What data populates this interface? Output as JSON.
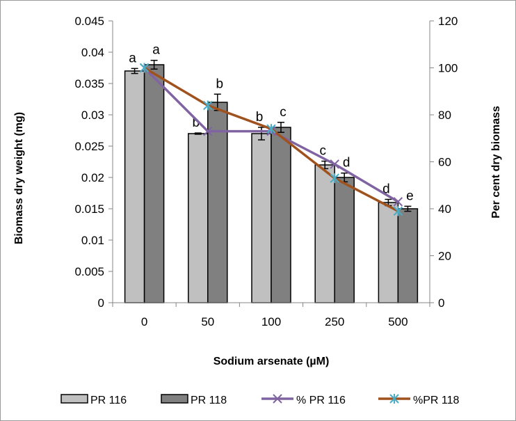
{
  "chart_data": {
    "type": "bar",
    "categories": [
      "0",
      "50",
      "100",
      "250",
      "500"
    ],
    "xlabel": "Sodium arsenate (µM)",
    "ylabel": "Biomass dry weight (mg)",
    "y2label": "Per cent dry biomass",
    "ylim": [
      0,
      0.045
    ],
    "y2lim": [
      0,
      120
    ],
    "yticks": [
      "0",
      "0.005",
      "0.01",
      "0.015",
      "0.02",
      "0.025",
      "0.03",
      "0.035",
      "0.04",
      "0.045"
    ],
    "y2ticks": [
      "0",
      "20",
      "40",
      "60",
      "80",
      "100",
      "120"
    ],
    "grid": false,
    "legend_position": "bottom",
    "series": [
      {
        "name": "PR 116",
        "kind": "bar",
        "axis": "left",
        "color": "#c0c0c0",
        "values": [
          0.037,
          0.027,
          0.027,
          0.022,
          0.016
        ],
        "errors": [
          0.0004,
          0.0001,
          0.001,
          0.0006,
          0.0005
        ],
        "letters": [
          "a",
          "b",
          "b",
          "c",
          "d"
        ]
      },
      {
        "name": "PR 118",
        "kind": "bar",
        "axis": "left",
        "color": "#808080",
        "values": [
          0.038,
          0.032,
          0.028,
          0.02,
          0.015
        ],
        "errors": [
          0.0007,
          0.0013,
          0.0008,
          0.0007,
          0.0004
        ],
        "letters": [
          "a",
          "b",
          "c",
          "d",
          "e"
        ]
      },
      {
        "name": "% PR 116",
        "kind": "line",
        "axis": "right",
        "color": "#8064a2",
        "marker": "x",
        "values": [
          100,
          73,
          73,
          59,
          43
        ]
      },
      {
        "name": "%PR 118",
        "kind": "line",
        "axis": "right",
        "color": "#a0521e",
        "marker": "asterisk",
        "marker_color": "#4bacc6",
        "values": [
          100,
          84,
          74,
          53,
          39
        ]
      }
    ]
  }
}
